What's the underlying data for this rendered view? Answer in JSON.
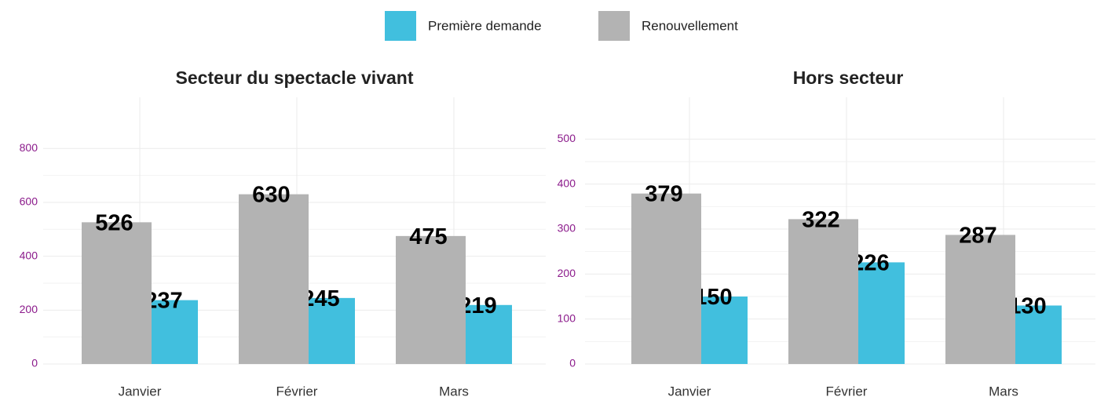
{
  "legend": [
    {
      "name": "Première demande",
      "color": "#41bfde"
    },
    {
      "name": "Renouvellement",
      "color": "#b3b3b3"
    }
  ],
  "chart_data": [
    {
      "type": "bar",
      "title": "Secteur du spectacle vivant",
      "categories": [
        "Janvier",
        "Février",
        "Mars"
      ],
      "series": [
        {
          "values": [
            237,
            245,
            219
          ]
        },
        {
          "values": [
            526,
            630,
            475
          ]
        }
      ],
      "ylim": [
        0,
        990
      ],
      "yticks": [
        0,
        200,
        400,
        600,
        800
      ],
      "grid": true
    },
    {
      "type": "bar",
      "title": "Hors secteur",
      "categories": [
        "Janvier",
        "Février",
        "Mars"
      ],
      "series": [
        {
          "values": [
            150,
            226,
            130
          ]
        },
        {
          "values": [
            379,
            322,
            287
          ]
        }
      ],
      "ylim": [
        0,
        593
      ],
      "yticks": [
        0,
        100,
        200,
        300,
        400,
        500
      ],
      "grid": true
    }
  ]
}
